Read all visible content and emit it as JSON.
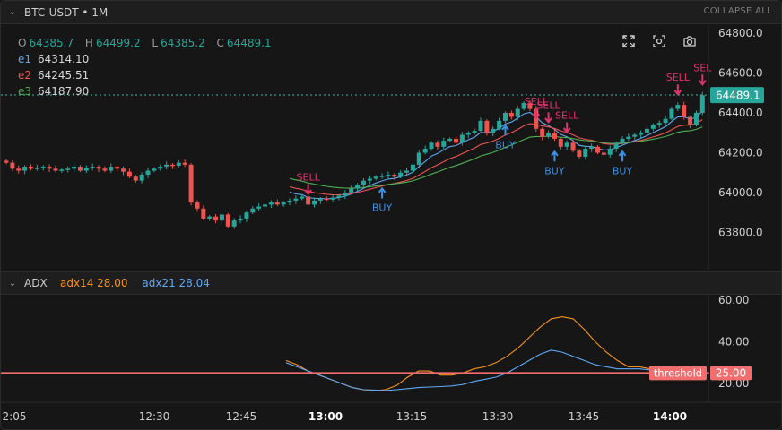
{
  "header": {
    "symbol_title": "BTC-USDT • 1M",
    "collapse_all": "COLLAPSE ALL"
  },
  "ohlc": {
    "o_label": "O",
    "o": "64385.7",
    "h_label": "H",
    "h": "64499.2",
    "l_label": "L",
    "l": "64385.2",
    "c_label": "C",
    "c": "64489.1"
  },
  "ema": [
    {
      "label": "e1",
      "value": "64314.10",
      "color": "#5fa8f5"
    },
    {
      "label": "e2",
      "value": "64245.51",
      "color": "#ef5350"
    },
    {
      "label": "e3",
      "value": "64187.90",
      "color": "#4caf50"
    }
  ],
  "price_axis": {
    "ticks": [
      "64800.0",
      "64600.0",
      "64400.0",
      "64200.0",
      "64000.0",
      "63800.0"
    ],
    "last_price": "64489.1"
  },
  "signals": {
    "buy": "BUY",
    "sell": "SELL",
    "sell_clipped": "SEL"
  },
  "adx_pane": {
    "title": "ADX",
    "adx14_label": "adx14",
    "adx14_value": "28.00",
    "adx21_label": "adx21",
    "adx21_value": "28.04",
    "ticks": [
      "60.00",
      "40.00",
      "20.00"
    ],
    "threshold_label": "threshold",
    "threshold_value": "25.00"
  },
  "time_axis": {
    "ticks": [
      "2:05",
      "12:30",
      "12:45",
      "13:00",
      "13:15",
      "13:30",
      "13:45",
      "14:00"
    ],
    "bold": [
      "13:00",
      "14:00"
    ]
  },
  "colors": {
    "up": "#26a69a",
    "down": "#ef5350",
    "adx14": "#f7931a",
    "adx21": "#5fa8f5",
    "threshold": "#f26d6d",
    "sell_marker": "#e0336b",
    "buy_marker": "#3d8fe0"
  },
  "chart_data": [
    {
      "type": "candlestick",
      "ylim": [
        63700,
        64850
      ],
      "x_ticks": [
        "2:05",
        "12:30",
        "12:45",
        "13:00",
        "13:15",
        "13:30",
        "13:45",
        "14:00"
      ],
      "close": [
        64150,
        64120,
        64110,
        64130,
        64120,
        64125,
        64130,
        64120,
        64110,
        64115,
        64120,
        64130,
        64110,
        64125,
        64130,
        64120,
        64110,
        64130,
        64120,
        64105,
        64080,
        64060,
        64090,
        64110,
        64120,
        64130,
        64140,
        64135,
        64150,
        64140,
        63950,
        63920,
        63870,
        63880,
        63860,
        63890,
        63830,
        63860,
        63870,
        63900,
        63920,
        63930,
        63940,
        63950,
        63940,
        63950,
        63960,
        63970,
        63980,
        63940,
        63960,
        63970,
        63965,
        63975,
        63985,
        64000,
        64020,
        64040,
        64060,
        64070,
        64080,
        64085,
        64090,
        64080,
        64100,
        64110,
        64140,
        64200,
        64220,
        64250,
        64230,
        64260,
        64270,
        64250,
        64290,
        64300,
        64310,
        64360,
        64300,
        64320,
        64360,
        64400,
        64380,
        64420,
        64450,
        64420,
        64320,
        64280,
        64300,
        64270,
        64230,
        64250,
        64210,
        64180,
        64220,
        64230,
        64200,
        64190,
        64220,
        64250,
        64270,
        64280,
        64290,
        64300,
        64320,
        64340,
        64350,
        64370,
        64420,
        64440,
        64380,
        64340,
        64400,
        64489
      ],
      "ema": {
        "e1": "64314.10",
        "e2": "64245.51",
        "e3": "64187.90"
      }
    },
    {
      "type": "line",
      "ylim": [
        15,
        65
      ],
      "series": [
        {
          "name": "adx14",
          "values": [
            31,
            29,
            26,
            24,
            22,
            20,
            18,
            17,
            16.5,
            17,
            19,
            23,
            26,
            26,
            24,
            24,
            25,
            27,
            28,
            30,
            33,
            37,
            42,
            47,
            51,
            52,
            51,
            46,
            40,
            35,
            31,
            28,
            28,
            27,
            26,
            25,
            24,
            25,
            28
          ]
        },
        {
          "name": "adx21",
          "values": [
            30,
            28,
            26,
            24,
            22,
            20,
            18,
            17,
            16.8,
            16.6,
            17,
            17.5,
            18,
            18.3,
            18.5,
            18.8,
            19.5,
            21,
            22,
            23,
            25,
            28,
            31,
            34,
            36,
            35,
            33,
            31,
            29,
            28,
            27,
            27,
            27,
            26.5,
            26,
            25.5,
            25,
            25.5,
            28.04
          ]
        }
      ],
      "threshold": 25,
      "y_ticks": [
        "60.00",
        "40.00",
        "20.00"
      ]
    }
  ]
}
